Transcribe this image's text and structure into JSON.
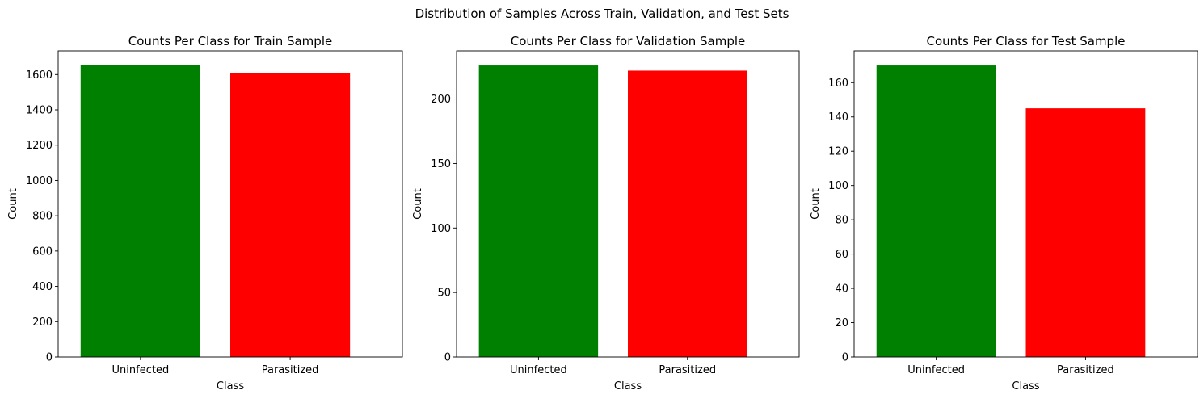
{
  "figure": {
    "suptitle": "Distribution of Samples Across Train, Validation, and Test Sets"
  },
  "chart_data": [
    {
      "type": "bar",
      "title": "Counts Per Class for Train Sample",
      "xlabel": "Class",
      "ylabel": "Count",
      "categories": [
        "Uninfected",
        "Parasitized"
      ],
      "values": [
        1652,
        1610
      ],
      "colors": [
        "#008000",
        "#ff0000"
      ],
      "ylim": [
        0,
        1734
      ],
      "yticks": [
        0,
        200,
        400,
        600,
        800,
        1000,
        1200,
        1400,
        1600
      ],
      "grid": false
    },
    {
      "type": "bar",
      "title": "Counts Per Class for Validation Sample",
      "xlabel": "Class",
      "ylabel": "Count",
      "categories": [
        "Uninfected",
        "Parasitized"
      ],
      "values": [
        226,
        222
      ],
      "colors": [
        "#008000",
        "#ff0000"
      ],
      "ylim": [
        0,
        237.3
      ],
      "yticks": [
        0,
        50,
        100,
        150,
        200
      ],
      "grid": false
    },
    {
      "type": "bar",
      "title": "Counts Per Class for Test Sample",
      "xlabel": "Class",
      "ylabel": "Count",
      "categories": [
        "Uninfected",
        "Parasitized"
      ],
      "values": [
        170,
        145
      ],
      "colors": [
        "#008000",
        "#ff0000"
      ],
      "ylim": [
        0,
        178.5
      ],
      "yticks": [
        0,
        20,
        40,
        60,
        80,
        100,
        120,
        140,
        160
      ],
      "grid": false
    }
  ]
}
